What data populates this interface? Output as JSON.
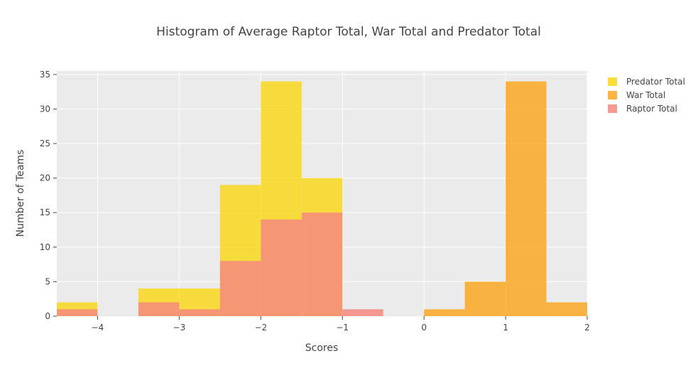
{
  "chart_data": {
    "type": "histogram",
    "title": "Histogram of Average Raptor Total, War Total and Predator Total",
    "xlabel": "Scores",
    "ylabel": "Number of Teams",
    "xlim": [
      -4.5,
      2
    ],
    "ylim": [
      0,
      35.5
    ],
    "x_ticks": [
      -4,
      -3,
      -2,
      -1,
      0,
      1,
      2
    ],
    "x_tick_labels": [
      "−4",
      "−3",
      "−2",
      "−1",
      "0",
      "1",
      "2"
    ],
    "y_ticks": [
      0,
      5,
      10,
      15,
      20,
      25,
      30,
      35
    ],
    "y_tick_labels": [
      "0",
      "5",
      "10",
      "15",
      "20",
      "25",
      "30",
      "35"
    ],
    "bin_width": 0.5,
    "barmode": "overlay",
    "grid": true,
    "legend_position": "top-right",
    "background": "#ebebeb",
    "series": [
      {
        "name": "Predator Total",
        "color": "#f9d71c",
        "bins": [
          {
            "x0": -4.5,
            "x1": -4.0,
            "count": 2
          },
          {
            "x0": -3.5,
            "x1": -3.0,
            "count": 4
          },
          {
            "x0": -3.0,
            "x1": -2.5,
            "count": 4
          },
          {
            "x0": -2.5,
            "x1": -2.0,
            "count": 19
          },
          {
            "x0": -2.0,
            "x1": -1.5,
            "count": 34
          },
          {
            "x0": -1.5,
            "x1": -1.0,
            "count": 20
          }
        ]
      },
      {
        "name": "War Total",
        "color": "#f9a825",
        "bins": [
          {
            "x0": 0.0,
            "x1": 0.5,
            "count": 1
          },
          {
            "x0": 0.5,
            "x1": 1.0,
            "count": 5
          },
          {
            "x0": 1.0,
            "x1": 1.5,
            "count": 34
          },
          {
            "x0": 1.5,
            "x1": 2.0,
            "count": 2
          }
        ]
      },
      {
        "name": "Raptor Total",
        "color": "#f48a80",
        "bins": [
          {
            "x0": -4.5,
            "x1": -4.0,
            "count": 1
          },
          {
            "x0": -3.5,
            "x1": -3.0,
            "count": 2
          },
          {
            "x0": -3.0,
            "x1": -2.5,
            "count": 1
          },
          {
            "x0": -2.5,
            "x1": -2.0,
            "count": 8
          },
          {
            "x0": -2.0,
            "x1": -1.5,
            "count": 14
          },
          {
            "x0": -1.5,
            "x1": -1.0,
            "count": 15
          },
          {
            "x0": -1.0,
            "x1": -0.5,
            "count": 1
          }
        ]
      }
    ]
  }
}
